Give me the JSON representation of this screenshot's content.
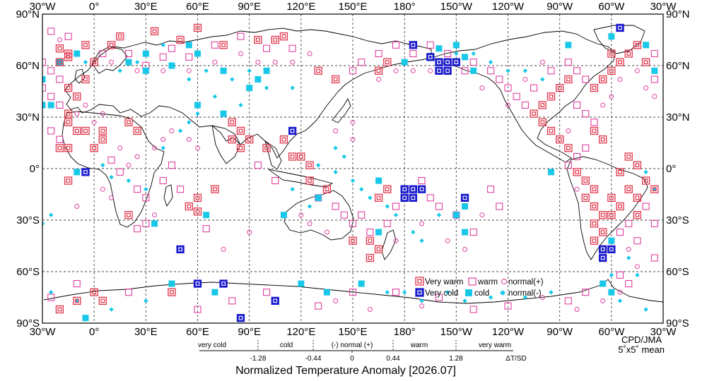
{
  "top_ticks": [
    "30°W",
    "0°",
    "30°E",
    "60°E",
    "90°E",
    "120°E",
    "150°E",
    "180°",
    "150°W",
    "120°W",
    "90°W",
    "60°W",
    "30°W"
  ],
  "bottom_ticks": [
    "30°W",
    "0°",
    "30°E",
    "60°E",
    "90°E",
    "120°E",
    "150°E",
    "180°",
    "150°W",
    "120°W",
    "90°W",
    "60°W",
    "30°W"
  ],
  "left_ticks": [
    "90°N",
    "60°N",
    "30°N",
    "0°",
    "30°S",
    "60°S",
    "90°S"
  ],
  "right_ticks": [
    "90°N",
    "60°N",
    "30°N",
    "0°",
    "30°S",
    "60°S",
    "90°S"
  ],
  "legend": {
    "very_warm": "Very warm",
    "warm": "warm",
    "normal_pos": "normal(+)",
    "very_cold": "Very cold",
    "cold": "cold",
    "normal_neg": "normal(-)"
  },
  "scale": {
    "categories": [
      "very cold",
      "cold",
      "(-) normal (+)",
      "warm",
      "very warm"
    ],
    "values": [
      "-1.28",
      "-0.44",
      "0",
      "0.44",
      "1.28"
    ],
    "unit": "ΔT/SD"
  },
  "title": "Normalized Temperature Anomaly [2026.07]",
  "credit": [
    "CPD/JMA",
    "5˚x5˚ mean"
  ],
  "colors": {
    "warm": "#e0344a",
    "warm_light": "#e040a0",
    "cold": "#1a1acc",
    "cold_light": "#19c8e8"
  },
  "grid": "dashed 30° graticule",
  "projection": "equirectangular, centered 150°E",
  "map_data": {
    "type": "gridded anomaly markers",
    "resolution_deg": 5,
    "very_warm": [
      [
        -20,
        70
      ],
      [
        -15,
        67
      ],
      [
        -5,
        72
      ],
      [
        10,
        72
      ],
      [
        15,
        77
      ],
      [
        35,
        80
      ],
      [
        50,
        75
      ],
      [
        60,
        82
      ],
      [
        75,
        72
      ],
      [
        95,
        75
      ],
      [
        105,
        75
      ],
      [
        110,
        77
      ],
      [
        -15,
        32
      ],
      [
        -15,
        27
      ],
      [
        -20,
        12
      ],
      [
        -15,
        12
      ],
      [
        -10,
        22
      ],
      [
        -5,
        22
      ],
      [
        0,
        12
      ],
      [
        5,
        17
      ],
      [
        5,
        22
      ],
      [
        20,
        27
      ],
      [
        25,
        22
      ],
      [
        -15,
        -7
      ],
      [
        20,
        -27
      ],
      [
        55,
        -22
      ],
      [
        60,
        -17
      ],
      [
        60,
        -25
      ],
      [
        70,
        -12
      ],
      [
        80,
        27
      ],
      [
        85,
        22
      ],
      [
        80,
        17
      ],
      [
        90,
        17
      ],
      [
        85,
        12
      ],
      [
        100,
        12
      ],
      [
        110,
        17
      ],
      [
        115,
        7
      ],
      [
        120,
        7
      ],
      [
        125,
        2
      ],
      [
        125,
        -7
      ],
      [
        135,
        -12
      ],
      [
        150,
        -42
      ],
      [
        165,
        -17
      ],
      [
        170,
        -12
      ],
      [
        165,
        -47
      ],
      [
        160,
        -52
      ],
      [
        160,
        -42
      ],
      [
        -45,
        -27
      ],
      [
        -70,
        22
      ],
      [
        -65,
        17
      ],
      [
        -50,
        7
      ],
      [
        -45,
        2
      ],
      [
        -40,
        -7
      ],
      [
        -35,
        -12
      ],
      [
        -55,
        -2
      ],
      [
        165,
        57
      ],
      [
        170,
        62
      ],
      [
        140,
        52
      ],
      [
        130,
        57
      ],
      [
        -15,
        65
      ],
      [
        -20,
        62
      ],
      [
        0,
        62
      ],
      [
        -5,
        52
      ],
      [
        -15,
        47
      ],
      [
        -10,
        42
      ],
      [
        -70,
        47
      ],
      [
        -65,
        52
      ],
      [
        -60,
        57
      ],
      [
        -55,
        62
      ],
      [
        -50,
        67
      ],
      [
        -45,
        72
      ],
      [
        -60,
        67
      ],
      [
        -40,
        62
      ],
      [
        -85,
        52
      ],
      [
        -90,
        47
      ],
      [
        -95,
        42
      ],
      [
        -100,
        37
      ],
      [
        -105,
        32
      ],
      [
        -100,
        27
      ],
      [
        -95,
        22
      ],
      [
        -90,
        17
      ],
      [
        -85,
        12
      ],
      [
        -80,
        -2
      ],
      [
        -75,
        -7
      ],
      [
        -70,
        -12
      ],
      [
        -75,
        -17
      ],
      [
        -70,
        -22
      ],
      [
        -65,
        -27
      ],
      [
        -70,
        -32
      ],
      [
        -65,
        -37
      ],
      [
        -70,
        -42
      ],
      [
        -65,
        -47
      ],
      [
        -60,
        -17
      ],
      [
        -55,
        -22
      ],
      [
        -60,
        -27
      ],
      [
        -50,
        -12
      ],
      [
        -45,
        -17
      ],
      [
        -10,
        -77
      ],
      [
        5,
        -77
      ],
      [
        45,
        -72
      ],
      [
        0,
        -72
      ],
      [
        -20,
        -82
      ]
    ],
    "warm": [
      [
        -25,
        80
      ],
      [
        -15,
        77
      ],
      [
        5,
        67
      ],
      [
        20,
        67
      ],
      [
        30,
        60
      ],
      [
        40,
        65
      ],
      [
        45,
        70
      ],
      [
        55,
        65
      ],
      [
        70,
        72
      ],
      [
        85,
        77
      ],
      [
        100,
        70
      ],
      [
        115,
        70
      ],
      [
        -20,
        37
      ],
      [
        -25,
        22
      ],
      [
        -20,
        17
      ],
      [
        10,
        5
      ],
      [
        15,
        -2
      ],
      [
        25,
        -12
      ],
      [
        30,
        -17
      ],
      [
        40,
        -7
      ],
      [
        45,
        2
      ],
      [
        50,
        -12
      ],
      [
        65,
        -35
      ],
      [
        95,
        2
      ],
      [
        105,
        -7
      ],
      [
        130,
        -17
      ],
      [
        140,
        -22
      ],
      [
        145,
        -27
      ],
      [
        150,
        -32
      ],
      [
        155,
        -27
      ],
      [
        160,
        -37
      ],
      [
        170,
        -32
      ],
      [
        175,
        -22
      ],
      [
        -175,
        -12
      ],
      [
        -170,
        -7
      ],
      [
        -165,
        -17
      ],
      [
        -160,
        -22
      ],
      [
        -150,
        -27
      ],
      [
        -140,
        -37
      ],
      [
        -130,
        -12
      ],
      [
        -125,
        -22
      ],
      [
        150,
        57
      ],
      [
        155,
        62
      ],
      [
        165,
        67
      ],
      [
        175,
        72
      ],
      [
        -175,
        67
      ],
      [
        -165,
        72
      ],
      [
        -155,
        67
      ],
      [
        -150,
        62
      ],
      [
        -145,
        57
      ],
      [
        -140,
        62
      ],
      [
        -130,
        57
      ],
      [
        -125,
        52
      ],
      [
        -120,
        47
      ],
      [
        -115,
        42
      ],
      [
        -110,
        37
      ],
      [
        -105,
        47
      ],
      [
        -95,
        57
      ],
      [
        -85,
        62
      ],
      [
        -80,
        57
      ],
      [
        -75,
        52
      ],
      [
        -35,
        52
      ],
      [
        -30,
        47
      ],
      [
        -25,
        57
      ],
      [
        -30,
        62
      ],
      [
        -35,
        67
      ],
      [
        -20,
        52
      ],
      [
        -25,
        42
      ],
      [
        -80,
        37
      ],
      [
        -75,
        32
      ],
      [
        -70,
        27
      ],
      [
        -75,
        12
      ],
      [
        -80,
        7
      ],
      [
        -85,
        2
      ],
      [
        -40,
        -22
      ],
      [
        -35,
        -32
      ],
      [
        -50,
        -32
      ],
      [
        -55,
        -37
      ],
      [
        -45,
        -42
      ],
      [
        -35,
        -52
      ],
      [
        -55,
        -62
      ],
      [
        -50,
        -67
      ],
      [
        -75,
        -72
      ],
      [
        -85,
        -77
      ],
      [
        -120,
        -80
      ],
      [
        -140,
        -82
      ],
      [
        -160,
        -75
      ],
      [
        175,
        -72
      ],
      [
        20,
        -72
      ],
      [
        60,
        -82
      ],
      [
        80,
        -77
      ],
      [
        100,
        -72
      ],
      [
        130,
        -80
      ],
      [
        150,
        -72
      ],
      [
        -25,
        -75
      ],
      [
        -10,
        -67
      ],
      [
        30,
        -32
      ],
      [
        25,
        -35
      ]
    ],
    "normal_pos": [
      [
        -20,
        75
      ],
      [
        10,
        62
      ],
      [
        25,
        57
      ],
      [
        40,
        57
      ],
      [
        55,
        57
      ],
      [
        70,
        62
      ],
      [
        85,
        67
      ],
      [
        95,
        62
      ],
      [
        105,
        62
      ],
      [
        115,
        62
      ],
      [
        125,
        67
      ],
      [
        -10,
        32
      ],
      [
        -5,
        37
      ],
      [
        5,
        32
      ],
      [
        0,
        27
      ],
      [
        15,
        12
      ],
      [
        20,
        2
      ],
      [
        25,
        7
      ],
      [
        35,
        12
      ],
      [
        40,
        17
      ],
      [
        45,
        22
      ],
      [
        55,
        17
      ],
      [
        60,
        12
      ],
      [
        -10,
        -22
      ],
      [
        5,
        -12
      ],
      [
        10,
        -17
      ],
      [
        35,
        -27
      ],
      [
        75,
        -47
      ],
      [
        90,
        -37
      ],
      [
        120,
        -27
      ],
      [
        125,
        -32
      ],
      [
        135,
        -37
      ],
      [
        175,
        -42
      ],
      [
        -170,
        -32
      ],
      [
        -155,
        -42
      ],
      [
        -145,
        -47
      ],
      [
        -135,
        -27
      ],
      [
        140,
        22
      ],
      [
        150,
        27
      ],
      [
        150,
        17
      ],
      [
        165,
        52
      ],
      [
        175,
        57
      ],
      [
        -175,
        57
      ],
      [
        -165,
        57
      ],
      [
        -155,
        57
      ],
      [
        -135,
        47
      ],
      [
        -120,
        37
      ],
      [
        -110,
        52
      ],
      [
        -100,
        62
      ],
      [
        -45,
        57
      ],
      [
        -40,
        47
      ],
      [
        -35,
        42
      ],
      [
        -30,
        37
      ],
      [
        -55,
        52
      ],
      [
        -60,
        42
      ],
      [
        -65,
        37
      ],
      [
        -85,
        22
      ],
      [
        -80,
        -12
      ],
      [
        -50,
        -47
      ],
      [
        -45,
        -57
      ],
      [
        -55,
        -72
      ],
      [
        -65,
        -77
      ],
      [
        -80,
        -82
      ],
      [
        -100,
        -75
      ],
      [
        -170,
        -80
      ],
      [
        160,
        -82
      ],
      [
        140,
        -77
      ]
    ],
    "very_cold": [
      [
        -175,
        72
      ],
      [
        -165,
        65
      ],
      [
        -160,
        62
      ],
      [
        -155,
        62
      ],
      [
        -150,
        62
      ],
      [
        -160,
        57
      ],
      [
        -155,
        57
      ],
      [
        -5,
        -2
      ],
      [
        50,
        -47
      ],
      [
        60,
        -67
      ],
      [
        75,
        -67
      ],
      [
        105,
        -77
      ],
      [
        85,
        -87
      ],
      [
        115,
        22
      ],
      [
        -180,
        -12
      ],
      [
        -175,
        -12
      ],
      [
        -170,
        -12
      ],
      [
        -180,
        -17
      ],
      [
        -175,
        -17
      ],
      [
        -145,
        -17
      ],
      [
        -65,
        -47
      ],
      [
        -60,
        -47
      ],
      [
        -65,
        -52
      ],
      [
        -55,
        82
      ]
    ],
    "cold": [
      [
        -30,
        37
      ],
      [
        -20,
        62
      ],
      [
        -10,
        67
      ],
      [
        20,
        62
      ],
      [
        30,
        57
      ],
      [
        30,
        67
      ],
      [
        45,
        60
      ],
      [
        55,
        72
      ],
      [
        60,
        67
      ],
      [
        75,
        57
      ],
      [
        95,
        52
      ],
      [
        110,
        -27
      ],
      [
        165,
        -37
      ],
      [
        165,
        -7
      ],
      [
        130,
        -17
      ],
      [
        -180,
        62
      ],
      [
        -160,
        70
      ],
      [
        -150,
        72
      ],
      [
        -145,
        65
      ],
      [
        -140,
        57
      ],
      [
        35,
        -32
      ],
      [
        -5,
        -87
      ],
      [
        70,
        -72
      ],
      [
        45,
        -67
      ],
      [
        120,
        -67
      ],
      [
        135,
        -72
      ],
      [
        155,
        -67
      ],
      [
        -65,
        -67
      ],
      [
        -60,
        -72
      ],
      [
        -145,
        -22
      ],
      [
        -150,
        -27
      ],
      [
        -145,
        -37
      ],
      [
        -10,
        -2
      ],
      [
        -85,
        72
      ],
      [
        60,
        37
      ],
      [
        65,
        -27
      ],
      [
        75,
        32
      ],
      [
        90,
        47
      ],
      [
        100,
        57
      ],
      [
        -95,
        -2
      ],
      [
        -60,
        -42
      ],
      [
        -30,
        52
      ],
      [
        -35,
        57
      ],
      [
        -40,
        72
      ],
      [
        -60,
        77
      ],
      [
        -25,
        37
      ]
    ],
    "normal_neg": [
      [
        -5,
        62
      ],
      [
        15,
        57
      ],
      [
        25,
        62
      ],
      [
        40,
        72
      ],
      [
        55,
        52
      ],
      [
        65,
        57
      ],
      [
        80,
        52
      ],
      [
        90,
        57
      ],
      [
        100,
        47
      ],
      [
        115,
        47
      ],
      [
        5,
        2
      ],
      [
        10,
        -5
      ],
      [
        20,
        -7
      ],
      [
        30,
        -12
      ],
      [
        40,
        12
      ],
      [
        50,
        22
      ],
      [
        55,
        27
      ],
      [
        60,
        32
      ],
      [
        70,
        42
      ],
      [
        85,
        37
      ],
      [
        140,
        -2
      ],
      [
        150,
        -7
      ],
      [
        155,
        -12
      ],
      [
        160,
        -17
      ],
      [
        170,
        -22
      ],
      [
        175,
        -27
      ],
      [
        -175,
        -37
      ],
      [
        -170,
        -42
      ],
      [
        -160,
        -27
      ],
      [
        170,
        -72
      ],
      [
        -180,
        -72
      ],
      [
        -170,
        -77
      ],
      [
        -155,
        -72
      ],
      [
        -145,
        -77
      ],
      [
        -130,
        -75
      ],
      [
        -110,
        -75
      ],
      [
        -95,
        -72
      ],
      [
        -50,
        -52
      ],
      [
        -45,
        -62
      ],
      [
        -60,
        -62
      ],
      [
        -55,
        -77
      ],
      [
        -40,
        -82
      ],
      [
        -25,
        -72
      ],
      [
        -10,
        -77
      ],
      [
        10,
        -82
      ],
      [
        30,
        -77
      ],
      [
        115,
        -12
      ],
      [
        125,
        -22
      ],
      [
        -160,
        62
      ],
      [
        -150,
        67
      ],
      [
        -140,
        67
      ],
      [
        -130,
        62
      ],
      [
        -120,
        57
      ],
      [
        -110,
        57
      ],
      [
        -100,
        52
      ],
      [
        -30,
        -32
      ],
      [
        -25,
        -27
      ],
      [
        -35,
        -12
      ],
      [
        -40,
        -2
      ],
      [
        140,
        12
      ],
      [
        145,
        7
      ],
      [
        130,
        2
      ]
    ]
  }
}
